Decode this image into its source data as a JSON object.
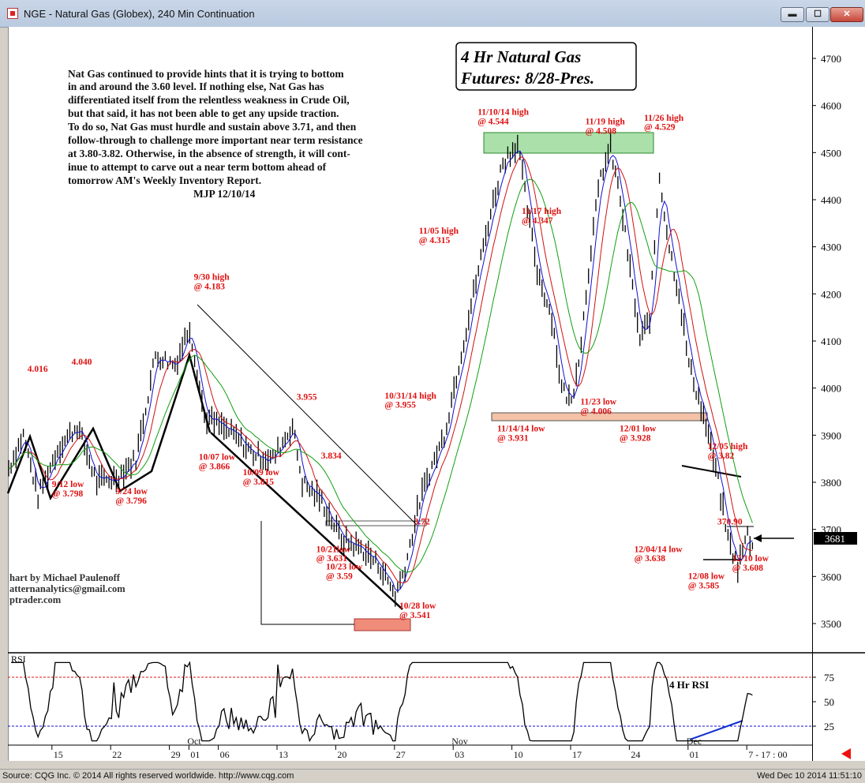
{
  "window": {
    "title": "NGE - Natural Gas (Globex), 240 Min Continuation",
    "buttons": {
      "minimize": "▬",
      "maximize": "☐",
      "close": "✕"
    }
  },
  "status": {
    "source": "Source: CQG Inc. © 2014 All rights reserved worldwide. http://www.cqg.com",
    "datetime": "Wed Dec 10 2014 11:51:10"
  },
  "chart_title": {
    "line1": "4 Hr Natural Gas",
    "line2": "Futures:  8/28-Pres."
  },
  "commentary": [
    "Nat Gas continued to provide hints that it is trying to bottom",
    "in and around the 3.60 level. If nothing else, Nat Gas has",
    "differentiated itself from the relentless weakness in Crude Oil,",
    "but that said, it has not been able to get any upside traction.",
    "To do so, Nat Gas must hurdle and sustain above 3.71, and then",
    "follow-through to challenge more important near term resistance",
    "at 3.80-3.82. Otherwise, in the absence of strength, it will cont-",
    "inue to attempt to carve out a near term bottom ahead of",
    "tomorrow AM's Weekly Inventory Report."
  ],
  "signature": "MJP 12/10/14",
  "credit": [
    "hart by Michael Paulenoff",
    "atternanalytics@gmail.com",
    "ptrader.com"
  ],
  "rsi_label": "RSI",
  "rsi_note": "4 Hr RSI",
  "current_price": "3681",
  "colors": {
    "annotation": "#e01010",
    "ma_blue": "#1010d0",
    "ma_red": "#d01010",
    "ma_green": "#10a010",
    "resistance_fill": "#7ed07e",
    "support_fill": "#f3c2a8",
    "low_fill": "#f08c7a"
  },
  "chart_data": {
    "type": "line",
    "price_axis": {
      "ticks": [
        "4700",
        "4600",
        "4500",
        "4400",
        "4300",
        "4200",
        "4100",
        "4000",
        "3900",
        "3800",
        "3700",
        "3600",
        "3500"
      ]
    },
    "rsi_axis": {
      "ticks": [
        "75",
        "50",
        "25"
      ]
    },
    "x_ticks": [
      {
        "label": "15",
        "idx": 9
      },
      {
        "label": "22",
        "idx": 21
      },
      {
        "label": "29",
        "idx": 33
      },
      {
        "label": "01",
        "idx": 37
      },
      {
        "label": "Oct",
        "idx": 37
      },
      {
        "label": "06",
        "idx": 43
      },
      {
        "label": "13",
        "idx": 55
      },
      {
        "label": "20",
        "idx": 67
      },
      {
        "label": "27",
        "idx": 79
      },
      {
        "label": "03",
        "idx": 91
      },
      {
        "label": "Nov",
        "idx": 91
      },
      {
        "label": "10",
        "idx": 103
      },
      {
        "label": "17",
        "idx": 115
      },
      {
        "label": "24",
        "idx": 127
      },
      {
        "label": "01",
        "idx": 139
      },
      {
        "label": "Dec",
        "idx": 139
      },
      {
        "label": "7 - 17 : 00",
        "idx": 151
      }
    ],
    "price_path": [
      [
        0,
        3830
      ],
      [
        3,
        3900
      ],
      [
        6,
        3770
      ],
      [
        10,
        3870
      ],
      [
        14,
        3920
      ],
      [
        18,
        3800
      ],
      [
        22,
        3810
      ],
      [
        26,
        3850
      ],
      [
        30,
        4070
      ],
      [
        34,
        4050
      ],
      [
        37,
        4130
      ],
      [
        40,
        3940
      ],
      [
        43,
        3920
      ],
      [
        46,
        3900
      ],
      [
        50,
        3860
      ],
      [
        54,
        3850
      ],
      [
        58,
        3920
      ],
      [
        60,
        3800
      ],
      [
        64,
        3760
      ],
      [
        68,
        3680
      ],
      [
        72,
        3660
      ],
      [
        76,
        3620
      ],
      [
        79,
        3560
      ],
      [
        81,
        3620
      ],
      [
        84,
        3760
      ],
      [
        86,
        3820
      ],
      [
        89,
        3900
      ],
      [
        92,
        4050
      ],
      [
        95,
        4200
      ],
      [
        98,
        4350
      ],
      [
        101,
        4480
      ],
      [
        104,
        4520
      ],
      [
        106,
        4380
      ],
      [
        108,
        4250
      ],
      [
        111,
        4150
      ],
      [
        113,
        4000
      ],
      [
        115,
        3970
      ],
      [
        117,
        4100
      ],
      [
        119,
        4300
      ],
      [
        121,
        4450
      ],
      [
        123,
        4510
      ],
      [
        125,
        4400
      ],
      [
        127,
        4250
      ],
      [
        129,
        4100
      ],
      [
        131,
        4150
      ],
      [
        133,
        4450
      ],
      [
        135,
        4300
      ],
      [
        137,
        4200
      ],
      [
        139,
        4050
      ],
      [
        141,
        3980
      ],
      [
        143,
        3900
      ],
      [
        145,
        3800
      ],
      [
        147,
        3680
      ],
      [
        149,
        3620
      ],
      [
        151,
        3690
      ],
      [
        152,
        3660
      ]
    ],
    "x_labels_font": "",
    "annotations": [
      {
        "text": "4.016",
        "idx": 4,
        "price": 4035
      },
      {
        "text": "4.040",
        "idx": 13,
        "price": 4050
      },
      {
        "text": "9/12 low",
        "idx": 9,
        "price": 3790
      },
      {
        "text": "@ 3.798",
        "idx": 9,
        "price": 3770
      },
      {
        "text": "9/24 low",
        "idx": 22,
        "price": 3775
      },
      {
        "text": "@ 3.796",
        "idx": 22,
        "price": 3755
      },
      {
        "text": "9/30 high",
        "idx": 38,
        "price": 4230
      },
      {
        "text": "@ 4.183",
        "idx": 38,
        "price": 4210
      },
      {
        "text": "3.955",
        "idx": 59,
        "price": 3975
      },
      {
        "text": "10/07 low",
        "idx": 39,
        "price": 3848
      },
      {
        "text": "@ 3.866",
        "idx": 39,
        "price": 3828
      },
      {
        "text": "10/09 low",
        "idx": 48,
        "price": 3815
      },
      {
        "text": "@ 3.815",
        "idx": 48,
        "price": 3795
      },
      {
        "text": "3.834",
        "idx": 64,
        "price": 3850
      },
      {
        "text": "3.72",
        "idx": 83,
        "price": 3710
      },
      {
        "text": "10/21low",
        "idx": 63,
        "price": 3652
      },
      {
        "text": "@ 3.631",
        "idx": 63,
        "price": 3632
      },
      {
        "text": "10/23 low",
        "idx": 65,
        "price": 3615
      },
      {
        "text": "@ 3.59",
        "idx": 65,
        "price": 3595
      },
      {
        "text": "10/28 low",
        "idx": 80,
        "price": 3532
      },
      {
        "text": "@ 3.541",
        "idx": 80,
        "price": 3512
      },
      {
        "text": "10/31/14 high",
        "idx": 77,
        "price": 3978
      },
      {
        "text": "@ 3.955",
        "idx": 77,
        "price": 3958
      },
      {
        "text": "11/05 high",
        "idx": 84,
        "price": 4328
      },
      {
        "text": "@ 4.315",
        "idx": 84,
        "price": 4308
      },
      {
        "text": "11/10/14 high",
        "idx": 96,
        "price": 4580
      },
      {
        "text": "@ 4.544",
        "idx": 96,
        "price": 4560
      },
      {
        "text": "11/17 high",
        "idx": 105,
        "price": 4370
      },
      {
        "text": "@ 4.347",
        "idx": 105,
        "price": 4350
      },
      {
        "text": "11/19 high",
        "idx": 118,
        "price": 4560
      },
      {
        "text": "@ 4.508",
        "idx": 118,
        "price": 4540
      },
      {
        "text": "11/26 high",
        "idx": 130,
        "price": 4568
      },
      {
        "text": "@ 4.529",
        "idx": 130,
        "price": 4548
      },
      {
        "text": "11/14/14 low",
        "idx": 100,
        "price": 3908
      },
      {
        "text": "@ 3.931",
        "idx": 100,
        "price": 3888
      },
      {
        "text": "11/23 low",
        "idx": 117,
        "price": 3965
      },
      {
        "text": "@ 4.006",
        "idx": 117,
        "price": 3945
      },
      {
        "text": "12/01 low",
        "idx": 125,
        "price": 3908
      },
      {
        "text": "@ 3.928",
        "idx": 125,
        "price": 3888
      },
      {
        "text": "12/05 high",
        "idx": 143,
        "price": 3870
      },
      {
        "text": "@ 3.82",
        "idx": 143,
        "price": 3850
      },
      {
        "text": "370.90",
        "idx": 145,
        "price": 3710
      },
      {
        "text": "12/04/14 low",
        "idx": 128,
        "price": 3652
      },
      {
        "text": "@ 3.638",
        "idx": 128,
        "price": 3632
      },
      {
        "text": "12/08 low",
        "idx": 139,
        "price": 3595
      },
      {
        "text": "@ 3.585",
        "idx": 139,
        "price": 3575
      },
      {
        "text": "12/10 low",
        "idx": 148,
        "price": 3632
      },
      {
        "text": "@ 3.608",
        "idx": 148,
        "price": 3612
      }
    ]
  }
}
